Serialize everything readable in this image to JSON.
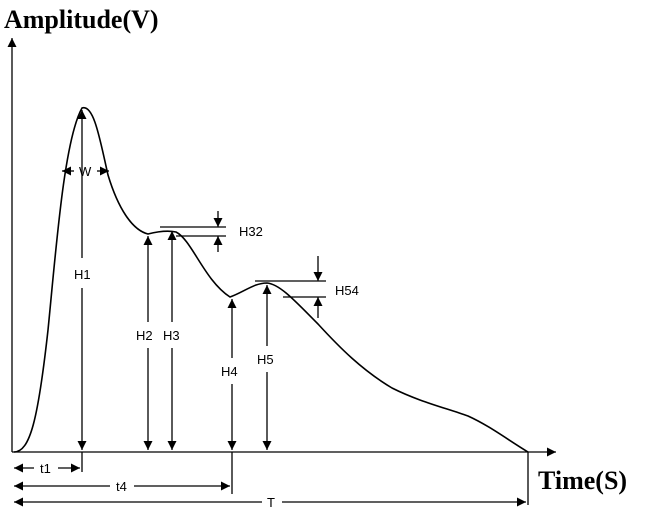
{
  "axes": {
    "y_label": "Amplitude(V)",
    "x_label": "Time(S)"
  },
  "labels": {
    "w": "W",
    "h1": "H1",
    "h2": "H2",
    "h3": "H3",
    "h32": "H32",
    "h4": "H4",
    "h5": "H5",
    "h54": "H54",
    "t1": "t1",
    "t4": "t4",
    "T": "T"
  },
  "colors": {
    "stroke": "#000000",
    "background": "#ffffff"
  }
}
